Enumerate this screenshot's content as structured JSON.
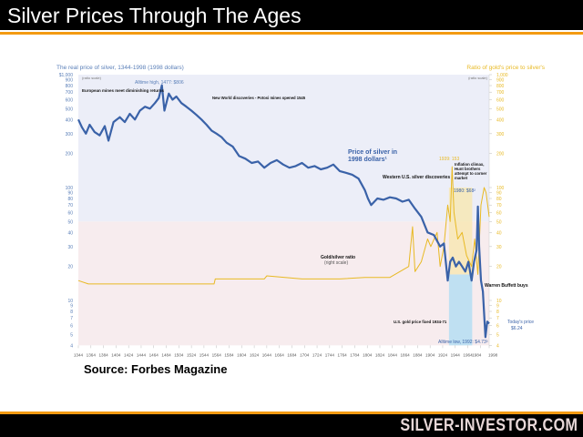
{
  "slide": {
    "title": "Silver Prices Through The Ages",
    "source": "Source: Forbes Magazine",
    "brand": "SILVER-INVESTOR.COM"
  },
  "colors": {
    "silver": "#3a62a8",
    "ratio": "#e8b923",
    "accent": "#f39a12",
    "upper_bg": "#eceef8",
    "lower_bg": "#f7ecee",
    "gold_fixed_bg": "#bfe0f2"
  },
  "chart_data": {
    "type": "line",
    "title": "The real price of silver, 1344-1998 (1998 dollars)",
    "ylabel": "(ratio scale)",
    "y2title": "Ratio of gold's price to silver's",
    "y2label": "(ratio scale)",
    "yscale": "log",
    "ylim": [
      4,
      1000
    ],
    "xlim": [
      1344,
      1998
    ],
    "ytick_labels": [
      "$1,000",
      "900",
      "800",
      "700",
      "600",
      "500",
      "400",
      "300",
      "200",
      "100",
      "90",
      "80",
      "70",
      "60",
      "50",
      "40",
      "30",
      "20",
      "10",
      "9",
      "8",
      "7",
      "6",
      "5",
      "4"
    ],
    "y2tick_labels": [
      "1,000",
      "900",
      "800",
      "700",
      "600",
      "500",
      "400",
      "300",
      "200",
      "100",
      "90",
      "80",
      "70",
      "60",
      "50",
      "40",
      "30",
      "20",
      "10",
      "9",
      "8",
      "7",
      "6",
      "5",
      "4"
    ],
    "ytick_values": [
      1000,
      900,
      800,
      700,
      600,
      500,
      400,
      300,
      200,
      100,
      90,
      80,
      70,
      60,
      50,
      40,
      30,
      20,
      10,
      9,
      8,
      7,
      6,
      5,
      4
    ],
    "xtick_labels": [
      "1344",
      "1364",
      "1384",
      "1404",
      "1424",
      "1444",
      "1464",
      "1484",
      "1504",
      "1524",
      "1544",
      "1564",
      "1584",
      "1604",
      "1624",
      "1644",
      "1664",
      "1684",
      "1704",
      "1724",
      "1744",
      "1764",
      "1784",
      "1804",
      "1824",
      "1844",
      "1864",
      "1884",
      "1904",
      "1924",
      "1944",
      "1964",
      "1984",
      "1998"
    ],
    "series": [
      {
        "name": "Price of silver in 1998 dollars",
        "axis": "left",
        "x": [
          1344,
          1350,
          1356,
          1362,
          1370,
          1378,
          1386,
          1392,
          1400,
          1410,
          1418,
          1426,
          1434,
          1442,
          1450,
          1458,
          1466,
          1472,
          1477,
          1481,
          1488,
          1494,
          1500,
          1508,
          1516,
          1524,
          1532,
          1540,
          1548,
          1556,
          1564,
          1572,
          1580,
          1590,
          1600,
          1610,
          1620,
          1630,
          1640,
          1650,
          1660,
          1670,
          1680,
          1690,
          1700,
          1710,
          1720,
          1730,
          1740,
          1750,
          1760,
          1770,
          1780,
          1790,
          1800,
          1805,
          1810,
          1820,
          1830,
          1840,
          1850,
          1860,
          1870,
          1880,
          1890,
          1900,
          1910,
          1920,
          1926,
          1932,
          1936,
          1940,
          1945,
          1950,
          1955,
          1960,
          1965,
          1970,
          1974,
          1978,
          1980,
          1982,
          1985,
          1988,
          1992,
          1995,
          1998
        ],
        "y": [
          400,
          340,
          300,
          360,
          310,
          290,
          350,
          260,
          380,
          420,
          380,
          450,
          400,
          480,
          520,
          500,
          560,
          620,
          806,
          480,
          680,
          600,
          640,
          560,
          520,
          480,
          440,
          400,
          360,
          320,
          300,
          280,
          250,
          230,
          190,
          180,
          165,
          170,
          150,
          165,
          175,
          160,
          150,
          155,
          165,
          150,
          155,
          145,
          150,
          160,
          140,
          135,
          130,
          120,
          95,
          80,
          70,
          80,
          78,
          82,
          80,
          75,
          78,
          65,
          55,
          40,
          38,
          30,
          32,
          15,
          22,
          24,
          20,
          22,
          20,
          18,
          22,
          15,
          22,
          28,
          68,
          30,
          15,
          12,
          4.73,
          6.5,
          6.24
        ]
      },
      {
        "name": "Gold/silver ratio (right scale)",
        "axis": "right",
        "x": [
          1344,
          1360,
          1400,
          1500,
          1560,
          1562,
          1640,
          1644,
          1700,
          1760,
          1800,
          1840,
          1870,
          1876,
          1880,
          1890,
          1900,
          1905,
          1915,
          1920,
          1926,
          1932,
          1936,
          1939,
          1942,
          1948,
          1955,
          1962,
          1970,
          1975,
          1980,
          1985,
          1990,
          1993,
          1998
        ],
        "y": [
          15,
          14,
          14,
          14,
          14,
          15.5,
          15.5,
          16.5,
          15.5,
          15.5,
          16,
          16,
          20,
          45,
          18,
          22,
          35,
          30,
          40,
          20,
          30,
          70,
          50,
          153,
          60,
          35,
          40,
          25,
          20,
          35,
          17,
          70,
          100,
          90,
          55
        ]
      }
    ],
    "annotations": {
      "european": "European mines meet diminishing returns",
      "alltime_high": "Alltime high, 1477: $806",
      "new_world": "New World discoveries - Potosi mines opened 1545",
      "price_label": "Price of silver in 1998 dollars¹",
      "western": "Western U.S. silver discoveries",
      "ratio_1939": "1939: 153",
      "hunt": "Inflation climax, Hunt brothers attempt to corner market",
      "y1980": "1980: $68²",
      "ratio_label": "Gold/silver ratio",
      "ratio_sub": "(right scale)",
      "gold_fixed": "U.S. gold price fixed 1934-71",
      "buffett": "Warren Buffett buys",
      "today": "Today's price",
      "today_val": "$6.24",
      "alltime_low": "Alltime low, 1992: $4.73³"
    }
  }
}
